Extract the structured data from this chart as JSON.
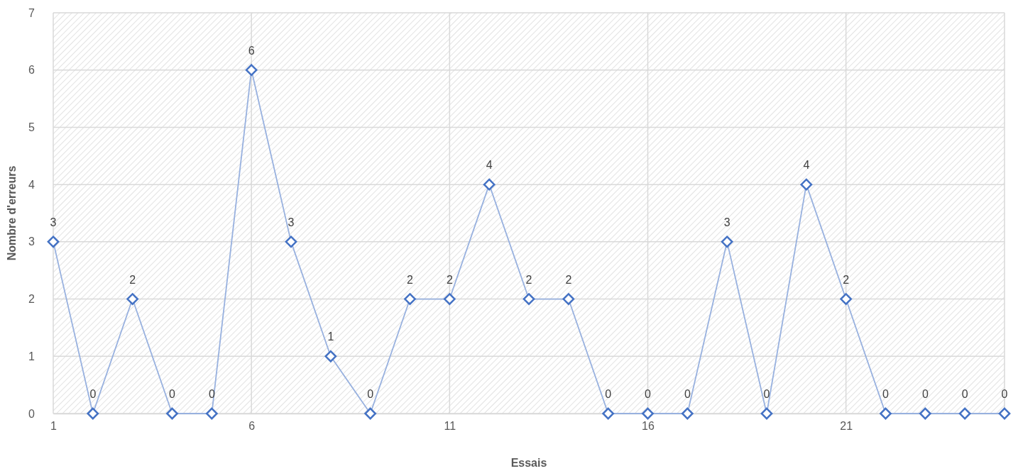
{
  "chart_data": {
    "type": "line",
    "xlabel": "Essais",
    "ylabel": "Nombre d'erreurs",
    "x": [
      1,
      2,
      3,
      4,
      5,
      6,
      7,
      8,
      9,
      10,
      11,
      12,
      13,
      14,
      15,
      16,
      17,
      18,
      19,
      20,
      21,
      22,
      23,
      24,
      25
    ],
    "series": [
      {
        "color": "#4472c4",
        "values": [
          3,
          0,
          2,
          0,
          0,
          6,
          3,
          1,
          0,
          2,
          2,
          4,
          2,
          2,
          0,
          0,
          0,
          3,
          0,
          4,
          2,
          0,
          0,
          0,
          0
        ]
      }
    ],
    "xlim": [
      1,
      25
    ],
    "xticks": [
      1,
      6,
      11,
      16,
      21
    ],
    "ylim": [
      0,
      7
    ],
    "yticks": [
      0,
      1,
      2,
      3,
      4,
      5,
      6,
      7
    ],
    "grid": true,
    "marker": "diamond",
    "line_style": "solid",
    "data_labels": true
  }
}
